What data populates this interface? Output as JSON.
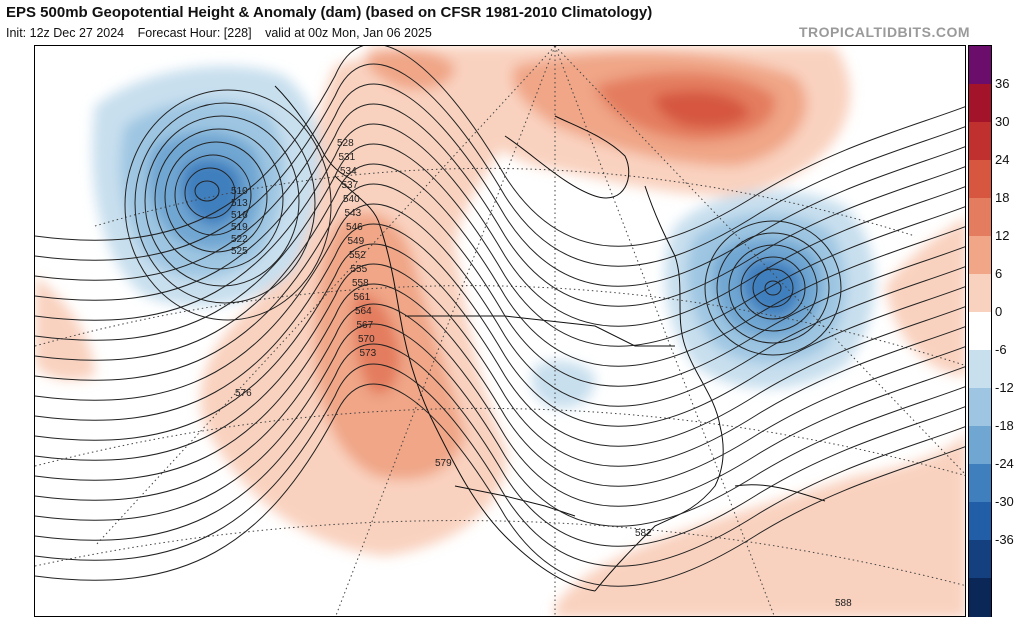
{
  "header": {
    "title": "EPS 500mb Geopotential Height & Anomaly (dam) (based on CFSR 1981-2010 Climatology)",
    "init": "Init: 12z Dec 27 2024",
    "forecast_hour": "Forecast Hour: [228]",
    "valid": "valid at 00z Mon, Jan 06 2025",
    "credit": "TROPICALTIDBITS.COM"
  },
  "colorbar": {
    "unit": "dam",
    "ticks": [
      "36",
      "30",
      "24",
      "18",
      "12",
      "6",
      "0",
      "-6",
      "-12",
      "-18",
      "-24",
      "-30",
      "-36"
    ],
    "colors": [
      "#6b0d6b",
      "#a3142a",
      "#c0302f",
      "#d65640",
      "#e47d5f",
      "#f0a687",
      "#f9d2bf",
      "#ffffff",
      "#c8dfee",
      "#9ec6e2",
      "#6fa6d2",
      "#3f7fbe",
      "#225ea8",
      "#14407f",
      "#0a2757"
    ]
  },
  "map": {
    "height_contours": [
      {
        "value": "510",
        "color": "#222"
      },
      {
        "value": "513",
        "color": "#222"
      },
      {
        "value": "516",
        "color": "#222"
      },
      {
        "value": "519",
        "color": "#222"
      },
      {
        "value": "522",
        "color": "#222"
      },
      {
        "value": "525",
        "color": "#222"
      },
      {
        "value": "528",
        "color": "#222"
      },
      {
        "value": "531",
        "color": "#222"
      },
      {
        "value": "534",
        "color": "#222"
      },
      {
        "value": "537",
        "color": "#222"
      },
      {
        "value": "540",
        "color": "#222"
      },
      {
        "value": "543",
        "color": "#222"
      },
      {
        "value": "546",
        "color": "#222"
      },
      {
        "value": "549",
        "color": "#222"
      },
      {
        "value": "552",
        "color": "#222"
      },
      {
        "value": "555",
        "color": "#222"
      },
      {
        "value": "558",
        "color": "#222"
      },
      {
        "value": "561",
        "color": "#222"
      },
      {
        "value": "564",
        "color": "#222"
      },
      {
        "value": "567",
        "color": "#222"
      },
      {
        "value": "570",
        "color": "#222"
      },
      {
        "value": "573",
        "color": "#222"
      },
      {
        "value": "576",
        "color": "#222"
      },
      {
        "value": "579",
        "color": "#222"
      },
      {
        "value": "582",
        "color": "#222"
      },
      {
        "value": "588",
        "color": "#222"
      }
    ],
    "anomaly_features": [
      {
        "name": "gulf-of-alaska-low",
        "sign": "negative",
        "peak_dam": -30
      },
      {
        "name": "western-ridge",
        "sign": "positive",
        "peak_dam": 12
      },
      {
        "name": "greenland-ridge",
        "sign": "positive",
        "peak_dam": 24
      },
      {
        "name": "eastern-canada-trough",
        "sign": "negative",
        "peak_dam": -24
      },
      {
        "name": "midwest-trough",
        "sign": "negative",
        "peak_dam": -6
      },
      {
        "name": "central-pacific-ridge",
        "sign": "positive",
        "peak_dam": 6
      }
    ]
  }
}
